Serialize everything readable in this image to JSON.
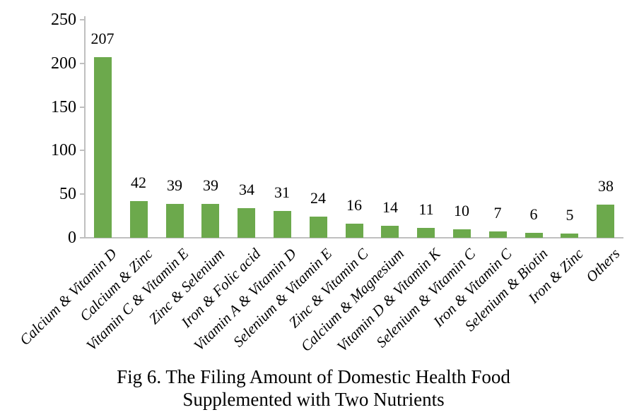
{
  "colors": {
    "bar": "#6CA94C",
    "axis": "#BFBFBF",
    "text": "#000000"
  },
  "y_axis": {
    "tick_labels": [
      "0",
      "50",
      "100",
      "150",
      "200",
      "250"
    ],
    "tick_step": 50,
    "max": 250
  },
  "caption": {
    "line1": "Fig 6. The Filing Amount of Domestic Health Food",
    "line2": "Supplemented with Two Nutrients"
  },
  "chart_data": {
    "type": "bar",
    "title": "Fig 6. The Filing Amount of Domestic Health Food Supplemented with Two Nutrients",
    "xlabel": "",
    "ylabel": "",
    "ylim": [
      0,
      250
    ],
    "y_tick_step": 50,
    "grid": false,
    "legend": false,
    "bar_color": "#6CA94C",
    "data_labels": true,
    "x_label_rotation_deg": 45,
    "x_label_style": "italic",
    "categories": [
      "Calcium & Vitamin D",
      "Calcium & Zinc",
      "Vitamin C & Vitamin E",
      "Zinc & Selenium",
      "Iron & Folic acid",
      "Vitamin A & Vitamin D",
      "Selenium & Vitamin E",
      "Zinc & Vitamin C",
      "Calcium & Magnesium",
      "Vitamin D & Vitamin K",
      "Selenium & Vitamin C",
      "Iron & Vitamin C",
      "Selenium & Biotin",
      "Iron & Zinc",
      "Others"
    ],
    "values": [
      207,
      42,
      39,
      39,
      34,
      31,
      24,
      16,
      14,
      11,
      10,
      7,
      6,
      5,
      38
    ]
  }
}
